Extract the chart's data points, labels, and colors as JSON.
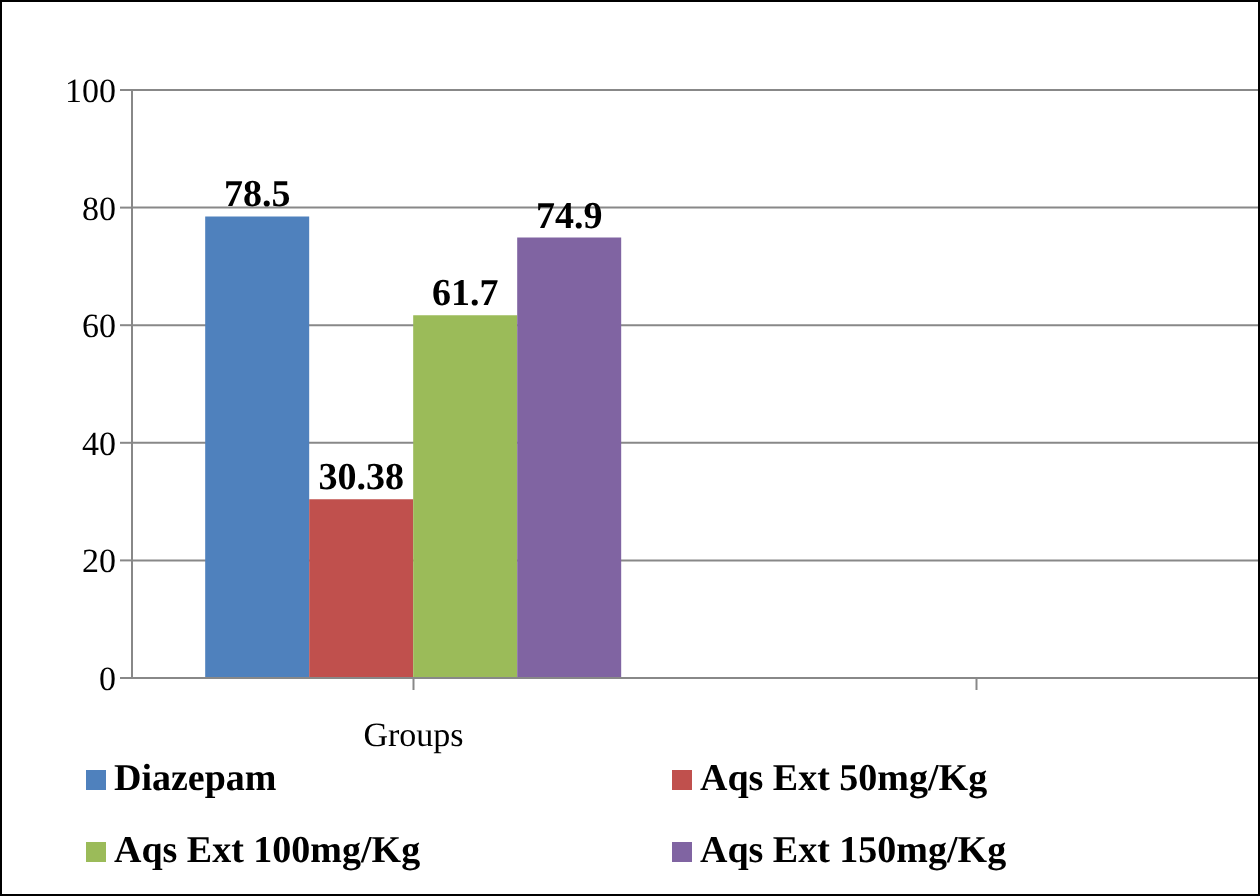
{
  "chart_data": {
    "type": "bar",
    "categories": [
      "Groups",
      null
    ],
    "series": [
      {
        "name": "Diazepam",
        "color": "#4f81bd",
        "values": [
          78.5,
          null
        ]
      },
      {
        "name": "Aqs Ext 50mg/Kg",
        "color": "#c0504d",
        "values": [
          30.38,
          null
        ]
      },
      {
        "name": "Aqs Ext 100mg/Kg",
        "color": "#9bbb59",
        "values": [
          61.7,
          null
        ]
      },
      {
        "name": "Aqs Ext 150mg/Kg",
        "color": "#8064a2",
        "values": [
          74.9,
          null
        ]
      }
    ],
    "ylim": [
      0,
      100
    ],
    "yticks": [
      0,
      20,
      40,
      60,
      80,
      100
    ],
    "grid": "y",
    "legend": "bottom",
    "data_labels": true
  }
}
